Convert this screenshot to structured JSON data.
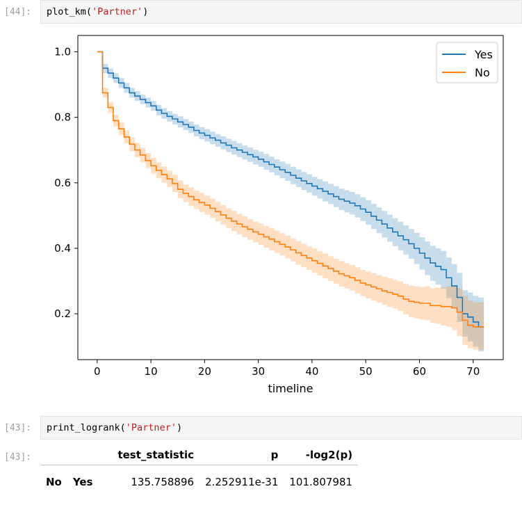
{
  "cells": [
    {
      "prompt": "[44]:",
      "code_fn": "plot_km(",
      "code_arg": "'Partner'",
      "code_end": ")"
    },
    {
      "prompt": "[43]:",
      "code_fn": "print_logrank(",
      "code_arg": "'Partner'",
      "code_end": ")"
    }
  ],
  "output_prompt": "[43]:",
  "chart_data": {
    "type": "line",
    "xlabel": "timeline",
    "ylabel": "",
    "title": "",
    "xlim": [
      -3.6,
      75.6
    ],
    "ylim": [
      0.06,
      1.05
    ],
    "xticks": [
      "0",
      "10",
      "20",
      "30",
      "40",
      "50",
      "60",
      "70"
    ],
    "yticks": [
      "0.2",
      "0.4",
      "0.6",
      "0.8",
      "1.0"
    ],
    "legend_position": "top-right",
    "series": [
      {
        "name": "Yes",
        "color": "#1f77b4",
        "x": [
          0,
          1,
          2,
          3,
          4,
          5,
          6,
          7,
          8,
          9,
          10,
          11,
          12,
          13,
          14,
          15,
          16,
          17,
          18,
          19,
          20,
          21,
          22,
          23,
          24,
          25,
          26,
          27,
          28,
          29,
          30,
          31,
          32,
          33,
          34,
          35,
          36,
          37,
          38,
          39,
          40,
          41,
          42,
          43,
          44,
          45,
          46,
          47,
          48,
          49,
          50,
          51,
          52,
          53,
          54,
          55,
          56,
          57,
          58,
          59,
          60,
          61,
          62,
          63,
          64,
          65,
          66,
          67,
          68,
          69,
          70,
          71,
          72
        ],
        "y": [
          1.0,
          0.95,
          0.935,
          0.92,
          0.905,
          0.89,
          0.875,
          0.865,
          0.855,
          0.845,
          0.835,
          0.822,
          0.812,
          0.803,
          0.795,
          0.786,
          0.778,
          0.77,
          0.76,
          0.752,
          0.745,
          0.737,
          0.73,
          0.722,
          0.715,
          0.707,
          0.7,
          0.693,
          0.686,
          0.679,
          0.672,
          0.664,
          0.656,
          0.648,
          0.64,
          0.632,
          0.623,
          0.614,
          0.606,
          0.598,
          0.59,
          0.582,
          0.574,
          0.566,
          0.558,
          0.55,
          0.544,
          0.538,
          0.53,
          0.52,
          0.51,
          0.498,
          0.486,
          0.474,
          0.462,
          0.45,
          0.438,
          0.426,
          0.414,
          0.4,
          0.385,
          0.37,
          0.355,
          0.345,
          0.335,
          0.31,
          0.285,
          0.25,
          0.2,
          0.19,
          0.175,
          0.16,
          0.16
        ],
        "ci_lower": [
          1.0,
          0.935,
          0.92,
          0.905,
          0.89,
          0.875,
          0.86,
          0.85,
          0.84,
          0.83,
          0.82,
          0.806,
          0.796,
          0.787,
          0.778,
          0.769,
          0.761,
          0.752,
          0.742,
          0.733,
          0.726,
          0.718,
          0.71,
          0.702,
          0.694,
          0.686,
          0.679,
          0.671,
          0.664,
          0.656,
          0.649,
          0.64,
          0.632,
          0.623,
          0.614,
          0.606,
          0.596,
          0.587,
          0.578,
          0.57,
          0.561,
          0.552,
          0.543,
          0.535,
          0.526,
          0.517,
          0.51,
          0.503,
          0.494,
          0.483,
          0.472,
          0.459,
          0.446,
          0.433,
          0.42,
          0.407,
          0.394,
          0.381,
          0.368,
          0.352,
          0.335,
          0.318,
          0.301,
          0.289,
          0.277,
          0.248,
          0.218,
          0.175,
          0.13,
          0.115,
          0.1,
          0.085,
          0.085
        ],
        "ci_upper": [
          1.0,
          0.963,
          0.949,
          0.935,
          0.92,
          0.905,
          0.89,
          0.88,
          0.87,
          0.86,
          0.85,
          0.838,
          0.828,
          0.819,
          0.811,
          0.803,
          0.795,
          0.787,
          0.778,
          0.77,
          0.764,
          0.756,
          0.749,
          0.742,
          0.735,
          0.728,
          0.721,
          0.714,
          0.708,
          0.701,
          0.695,
          0.688,
          0.68,
          0.672,
          0.665,
          0.658,
          0.649,
          0.641,
          0.633,
          0.626,
          0.618,
          0.611,
          0.604,
          0.597,
          0.59,
          0.582,
          0.577,
          0.572,
          0.565,
          0.556,
          0.547,
          0.536,
          0.525,
          0.514,
          0.503,
          0.492,
          0.481,
          0.47,
          0.459,
          0.447,
          0.434,
          0.421,
          0.408,
          0.4,
          0.392,
          0.372,
          0.352,
          0.325,
          0.272,
          0.265,
          0.255,
          0.25,
          0.25
        ]
      },
      {
        "name": "No",
        "color": "#ff7f0e",
        "x": [
          0,
          1,
          2,
          3,
          4,
          5,
          6,
          7,
          8,
          9,
          10,
          11,
          12,
          13,
          14,
          15,
          16,
          17,
          18,
          19,
          20,
          21,
          22,
          23,
          24,
          25,
          26,
          27,
          28,
          29,
          30,
          31,
          32,
          33,
          34,
          35,
          36,
          37,
          38,
          39,
          40,
          41,
          42,
          43,
          44,
          45,
          46,
          47,
          48,
          49,
          50,
          51,
          52,
          53,
          54,
          55,
          56,
          57,
          58,
          59,
          60,
          61,
          62,
          63,
          64,
          65,
          66,
          67,
          68,
          69,
          70,
          71,
          72
        ],
        "y": [
          1.0,
          0.875,
          0.83,
          0.79,
          0.765,
          0.74,
          0.718,
          0.7,
          0.685,
          0.668,
          0.652,
          0.638,
          0.625,
          0.612,
          0.598,
          0.58,
          0.568,
          0.558,
          0.548,
          0.54,
          0.532,
          0.522,
          0.512,
          0.502,
          0.492,
          0.483,
          0.474,
          0.466,
          0.458,
          0.45,
          0.443,
          0.435,
          0.428,
          0.42,
          0.412,
          0.404,
          0.395,
          0.386,
          0.378,
          0.37,
          0.362,
          0.354,
          0.346,
          0.338,
          0.33,
          0.322,
          0.316,
          0.31,
          0.302,
          0.294,
          0.288,
          0.282,
          0.276,
          0.27,
          0.265,
          0.26,
          0.254,
          0.245,
          0.238,
          0.235,
          0.232,
          0.232,
          0.225,
          0.225,
          0.222,
          0.222,
          0.218,
          0.205,
          0.18,
          0.165,
          0.16,
          0.16,
          0.16
        ],
        "ci_lower": [
          1.0,
          0.86,
          0.813,
          0.772,
          0.746,
          0.72,
          0.697,
          0.678,
          0.663,
          0.645,
          0.628,
          0.614,
          0.6,
          0.587,
          0.572,
          0.553,
          0.541,
          0.53,
          0.52,
          0.511,
          0.503,
          0.493,
          0.482,
          0.472,
          0.462,
          0.452,
          0.443,
          0.434,
          0.426,
          0.418,
          0.41,
          0.402,
          0.394,
          0.386,
          0.378,
          0.369,
          0.36,
          0.35,
          0.342,
          0.334,
          0.325,
          0.317,
          0.308,
          0.3,
          0.292,
          0.283,
          0.277,
          0.271,
          0.262,
          0.254,
          0.247,
          0.24,
          0.234,
          0.227,
          0.221,
          0.216,
          0.209,
          0.199,
          0.19,
          0.186,
          0.182,
          0.18,
          0.172,
          0.17,
          0.164,
          0.16,
          0.15,
          0.132,
          0.105,
          0.095,
          0.09,
          0.09,
          0.09
        ],
        "ci_upper": [
          1.0,
          0.89,
          0.847,
          0.808,
          0.784,
          0.76,
          0.739,
          0.722,
          0.707,
          0.691,
          0.676,
          0.662,
          0.65,
          0.637,
          0.624,
          0.607,
          0.595,
          0.586,
          0.576,
          0.569,
          0.561,
          0.551,
          0.542,
          0.532,
          0.522,
          0.514,
          0.505,
          0.498,
          0.49,
          0.482,
          0.476,
          0.468,
          0.462,
          0.454,
          0.446,
          0.439,
          0.43,
          0.422,
          0.414,
          0.406,
          0.399,
          0.391,
          0.384,
          0.376,
          0.368,
          0.361,
          0.355,
          0.349,
          0.342,
          0.334,
          0.329,
          0.324,
          0.318,
          0.313,
          0.309,
          0.304,
          0.299,
          0.291,
          0.286,
          0.284,
          0.282,
          0.284,
          0.278,
          0.28,
          0.28,
          0.284,
          0.286,
          0.278,
          0.255,
          0.24,
          0.235,
          0.235,
          0.235
        ]
      }
    ]
  },
  "logrank_table": {
    "columns": [
      "test_statistic",
      "p",
      "-log2(p)"
    ],
    "rows": [
      {
        "index": [
          "No",
          "Yes"
        ],
        "values": [
          "135.758896",
          "2.252911e-31",
          "101.807981"
        ]
      }
    ]
  }
}
